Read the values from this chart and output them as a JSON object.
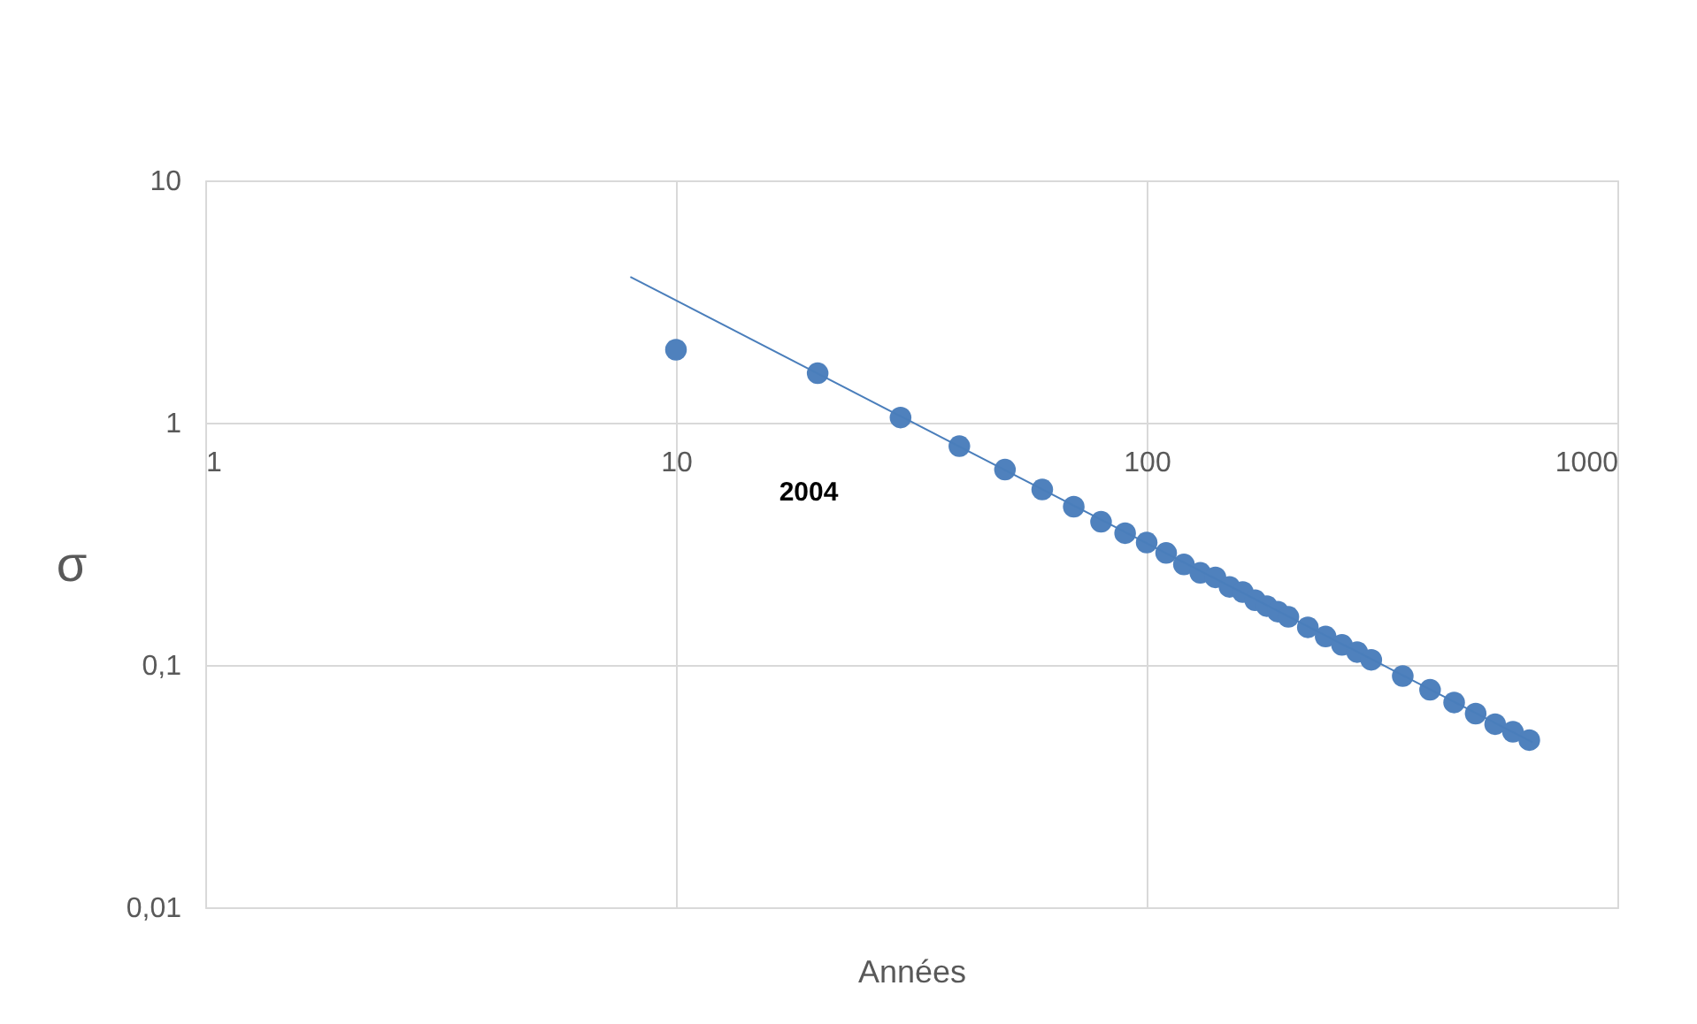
{
  "chart_data": {
    "type": "scatter",
    "xlabel": "Années",
    "ylabel": "σ",
    "log": "xy",
    "grid": true,
    "xlim": [
      1,
      1000
    ],
    "xticks": [
      1,
      10,
      100,
      1000
    ],
    "ylim": [
      0.01,
      10
    ],
    "yticks": [
      {
        "value": 0.01,
        "label": "0,01"
      },
      {
        "value": 0.1,
        "label": "0,1"
      },
      1,
      10
    ],
    "annotations": [
      "2004"
    ],
    "series": [
      {
        "color": "#4f81bd",
        "marker": "circle",
        "x": [
          10,
          20,
          30,
          40,
          50,
          60,
          70,
          80,
          90,
          100,
          110,
          120,
          130,
          140,
          150,
          160,
          170,
          180,
          190,
          200,
          220,
          240,
          260,
          280,
          300,
          350,
          400,
          450,
          500,
          550,
          600,
          650
        ],
        "values": [
          2.0,
          1.6,
          1.05,
          0.8,
          0.64,
          0.53,
          0.45,
          0.39,
          0.35,
          0.32,
          0.29,
          0.26,
          0.24,
          0.23,
          0.21,
          0.2,
          0.185,
          0.175,
          0.166,
          0.158,
          0.143,
          0.131,
          0.121,
          0.113,
          0.105,
          0.09,
          0.079,
          0.07,
          0.063,
          0.057,
          0.053,
          0.049
        ]
      },
      {
        "type": "line",
        "color": "#4a7ebb",
        "x": [
          8,
          660
        ],
        "values": [
          4.0,
          0.048
        ]
      }
    ]
  }
}
